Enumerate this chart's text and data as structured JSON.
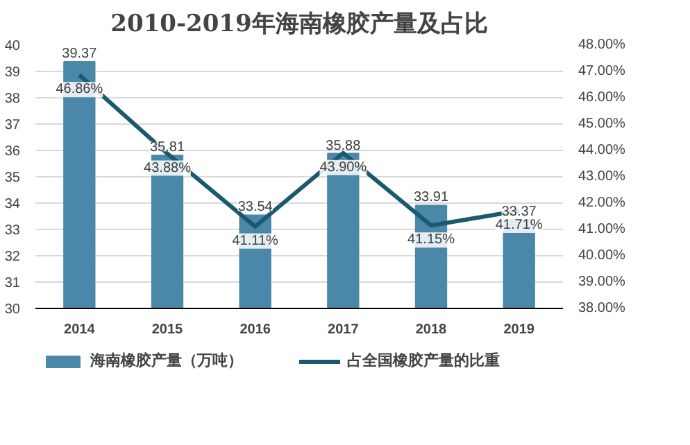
{
  "chart_data": {
    "type": "bar",
    "title": "2010-2019年海南橡胶产量及占比",
    "categories": [
      "2014",
      "2015",
      "2016",
      "2017",
      "2018",
      "2019"
    ],
    "series": [
      {
        "name": "海南橡胶产量（万吨）",
        "color": "#4a87a9",
        "values": [
          39.37,
          35.81,
          33.54,
          35.88,
          33.91,
          33.37
        ],
        "value_labels": [
          "39.37",
          "35.81",
          "33.54",
          "35.88",
          "33.91",
          "33.37"
        ]
      },
      {
        "name": "占全国橡胶产量的比重",
        "type": "line",
        "axis": "y2",
        "color": "#1b5a6e",
        "values": [
          46.86,
          43.88,
          41.11,
          43.9,
          41.15,
          41.71
        ],
        "value_labels": [
          "46.86%",
          "43.88%",
          "41.11%",
          "43.90%",
          "41.15%",
          "41.71%"
        ]
      }
    ],
    "ylim": [
      30,
      40
    ],
    "yticks": [
      30,
      31,
      32,
      33,
      34,
      35,
      36,
      37,
      38,
      39,
      40
    ],
    "y2lim": [
      38,
      48
    ],
    "y2ticks": [
      {
        "value": 38,
        "label": "38.00%"
      },
      {
        "value": 39,
        "label": "39.00%"
      },
      {
        "value": 40,
        "label": "40.00%"
      },
      {
        "value": 41,
        "label": "41.00%"
      },
      {
        "value": 42,
        "label": "42.00%"
      },
      {
        "value": 43,
        "label": "43.00%"
      },
      {
        "value": 44,
        "label": "44.00%"
      },
      {
        "value": 45,
        "label": "45.00%"
      },
      {
        "value": 46,
        "label": "46.00%"
      },
      {
        "value": 47,
        "label": "47.00%"
      },
      {
        "value": 48,
        "label": "48.00%"
      }
    ],
    "grid": "y",
    "legend": "bottom"
  }
}
